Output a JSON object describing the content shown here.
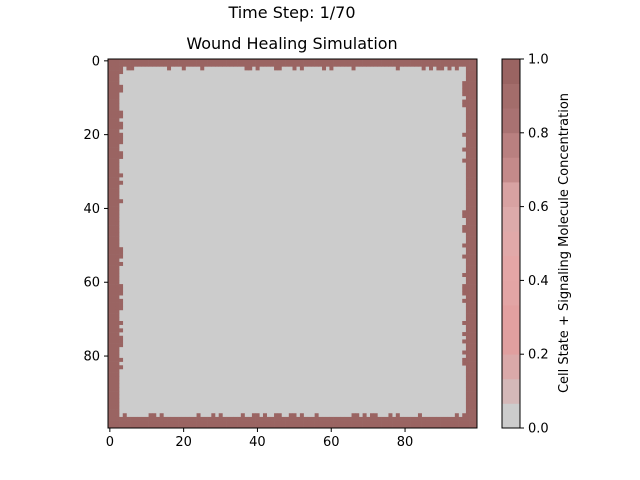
{
  "suptitle": "Time Step: 1/70",
  "chart_data": {
    "type": "heatmap",
    "title": "Wound Healing Simulation",
    "grid_size": [
      100,
      100
    ],
    "x_ticks": [
      0,
      20,
      40,
      60,
      80
    ],
    "y_ticks": [
      0,
      20,
      40,
      60,
      80
    ],
    "xlim": [
      -0.5,
      99.5
    ],
    "ylim": [
      99.5,
      -0.5
    ],
    "grid": false,
    "cell_state_color": "#9a6462",
    "background_color": "#cccccc",
    "wound_region": {
      "x_range": [
        3,
        96
      ],
      "y_range": [
        2,
        96
      ],
      "value": 0.0
    },
    "tissue_value": 1.0,
    "colorbar": {
      "label": "Cell State + Signaling Molecule Concentration",
      "range": [
        0.0,
        1.0
      ],
      "ticks": [
        0.0,
        0.2,
        0.4,
        0.6,
        0.8,
        1.0
      ],
      "tick_labels": [
        "0.0",
        "0.2",
        "0.4",
        "0.6",
        "0.8",
        "1.0"
      ],
      "colors": [
        "#cccccc",
        "#d4b8b8",
        "#daa9a9",
        "#e09f9f",
        "#e3a0a0",
        "#e3a5a5",
        "#e4a6a6",
        "#e1a9a9",
        "#ddaaaa",
        "#d8a2a2",
        "#c48a8a",
        "#b98080",
        "#a97272",
        "#a36d6b",
        "#9a6462"
      ]
    }
  }
}
